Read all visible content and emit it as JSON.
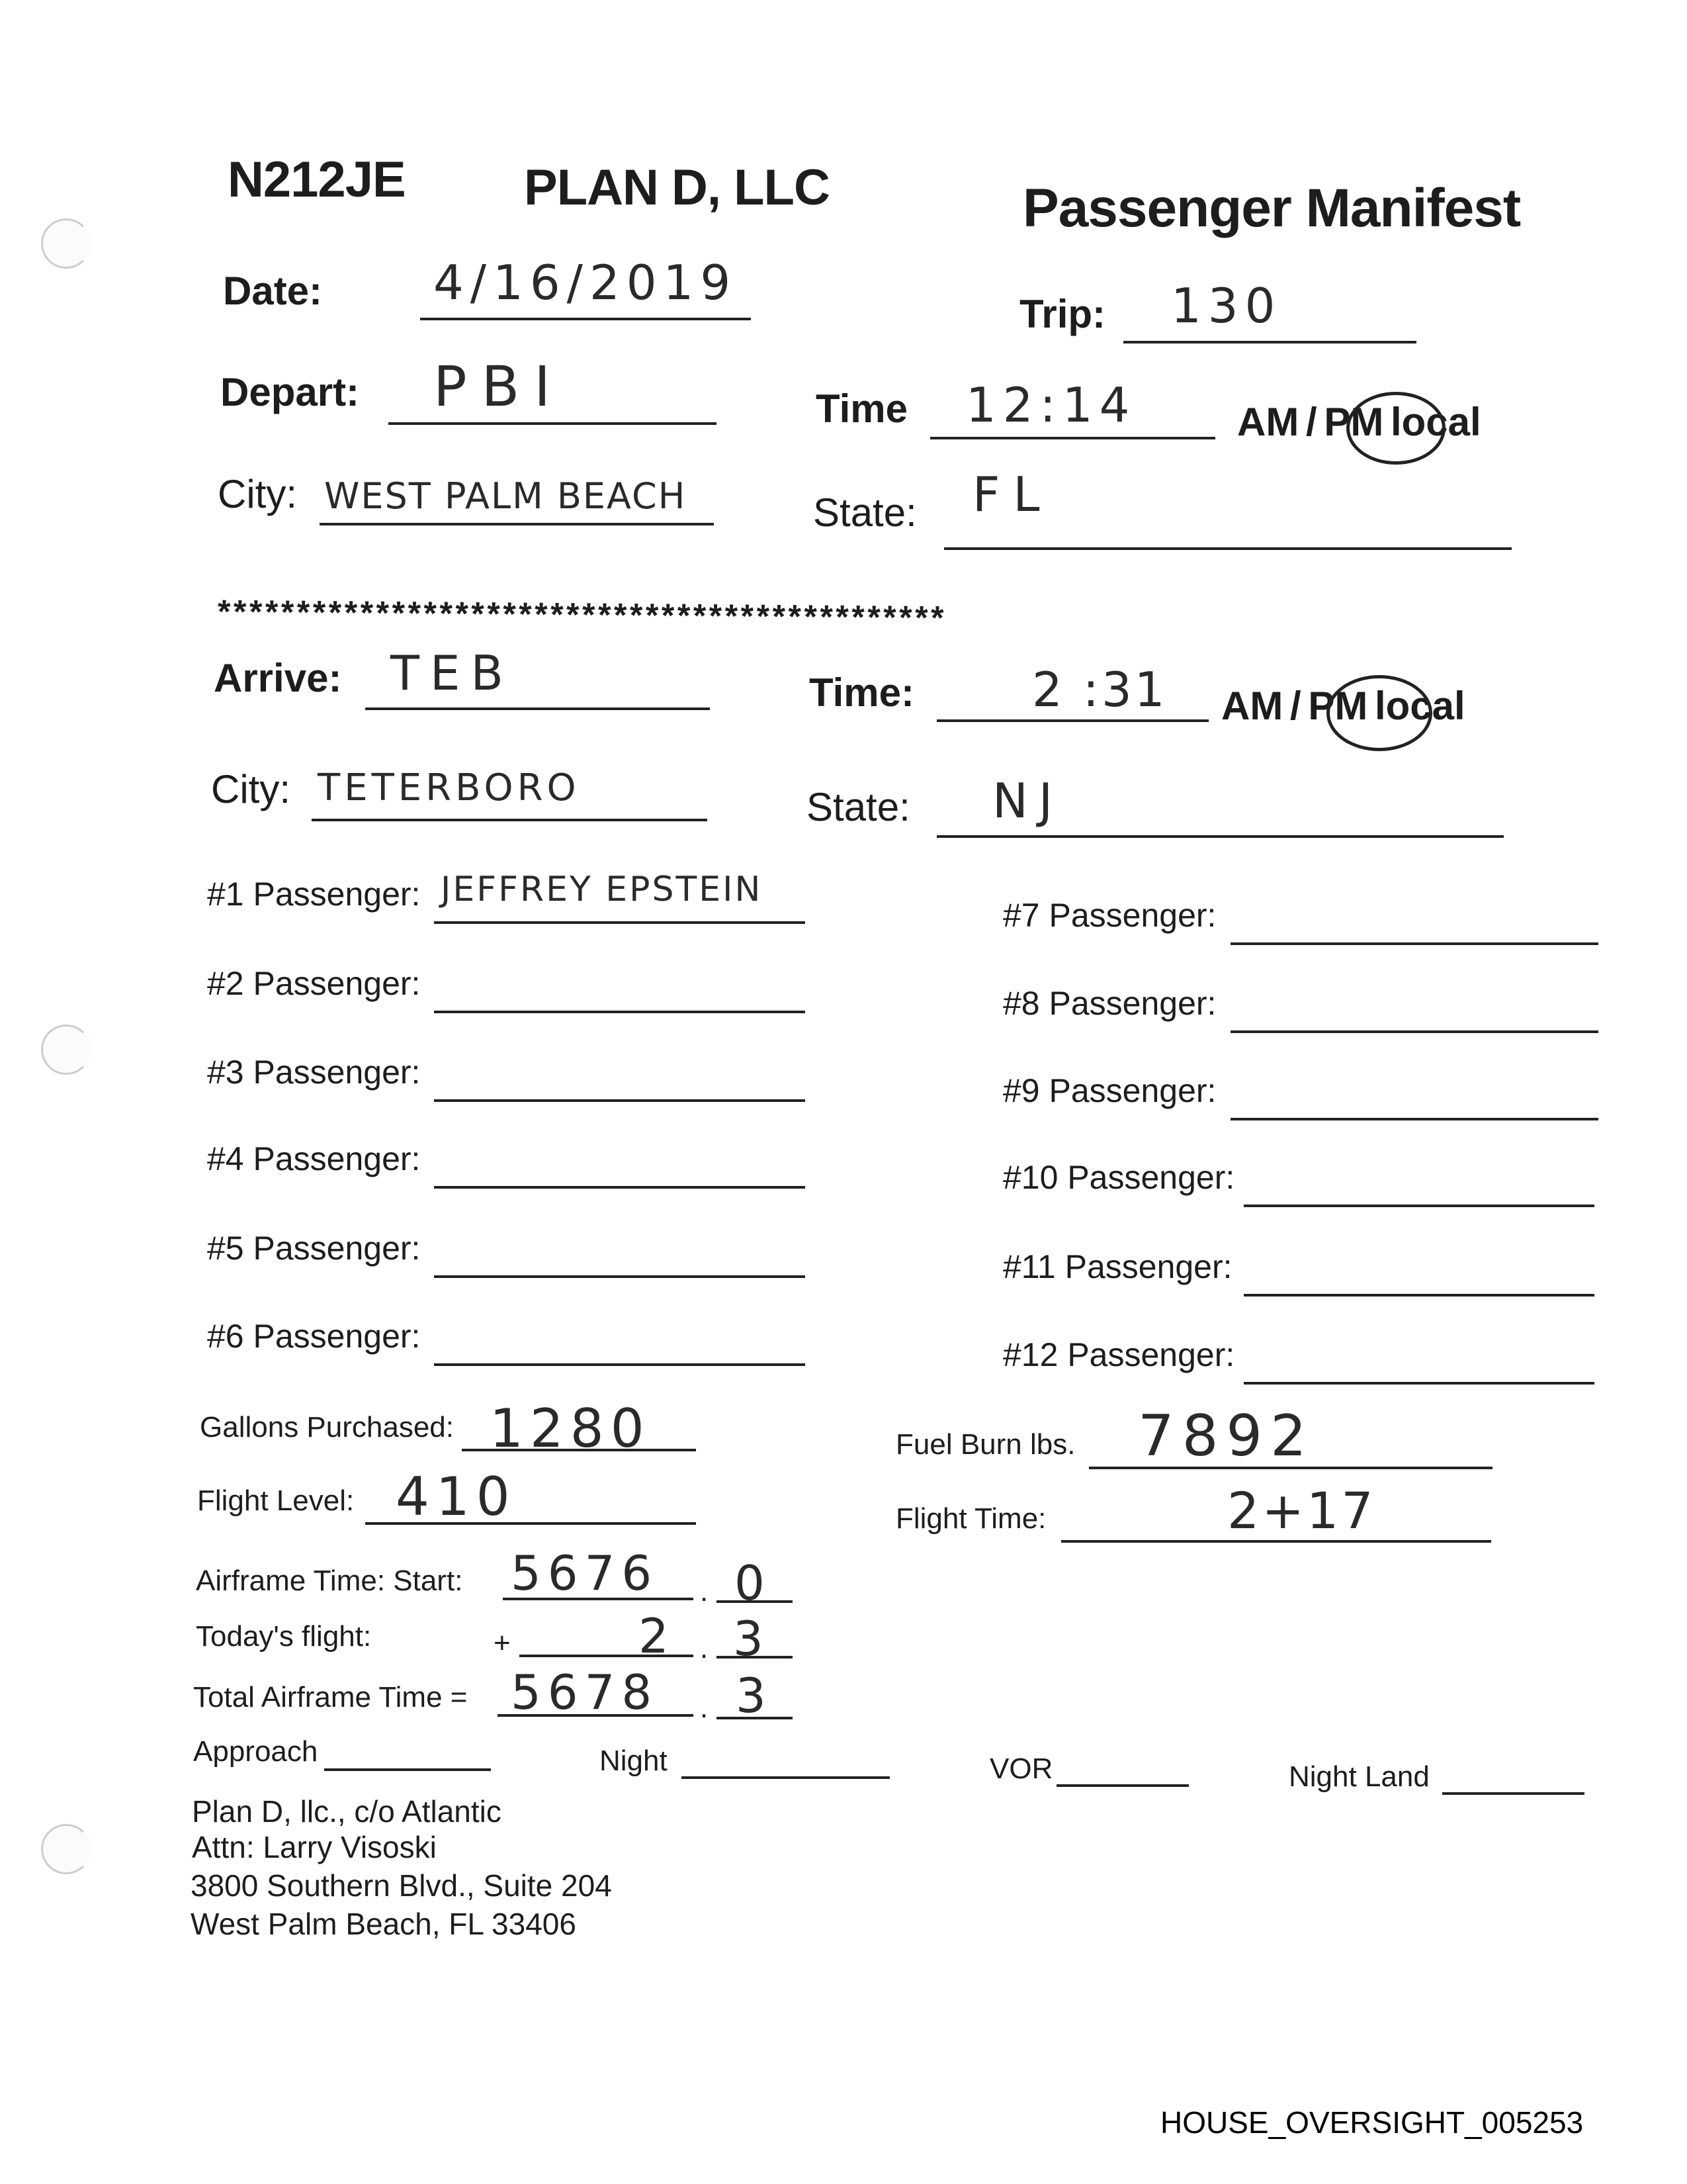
{
  "header": {
    "tail_number": "N212JE",
    "company": "PLAN D, LLC",
    "title": "Passenger Manifest"
  },
  "depart": {
    "date_label": "Date:",
    "date_value": "4/16/2019",
    "trip_label": "Trip:",
    "trip_value": "130",
    "depart_label": "Depart:",
    "depart_value": "PBI",
    "time_label": "Time",
    "time_value": "12:14",
    "ampm": "AM / PM local",
    "ampm_selected": "PM",
    "city_label": "City:",
    "city_value": "WEST PALM BEACH",
    "state_label": "State:",
    "state_value": "FL"
  },
  "separator": "**********************************************",
  "arrive": {
    "arrive_label": "Arrive:",
    "arrive_value": "TEB",
    "time_label": "Time:",
    "time_value": "2 :31",
    "ampm": "AM / PM local",
    "ampm_selected": "PM",
    "city_label": "City:",
    "city_value": "TETERBORO",
    "state_label": "State:",
    "state_value": "NJ"
  },
  "passengers": [
    {
      "label": "#1 Passenger:",
      "value": "JEFFREY EPSTEIN"
    },
    {
      "label": "#2 Passenger:",
      "value": ""
    },
    {
      "label": "#3 Passenger:",
      "value": ""
    },
    {
      "label": "#4 Passenger:",
      "value": ""
    },
    {
      "label": "#5 Passenger:",
      "value": ""
    },
    {
      "label": "#6 Passenger:",
      "value": ""
    },
    {
      "label": "#7 Passenger:",
      "value": ""
    },
    {
      "label": "#8 Passenger:",
      "value": ""
    },
    {
      "label": "#9 Passenger:",
      "value": ""
    },
    {
      "label": "#10 Passenger:",
      "value": ""
    },
    {
      "label": "#11 Passenger:",
      "value": ""
    },
    {
      "label": "#12 Passenger:",
      "value": ""
    }
  ],
  "fuel": {
    "gallons_label": "Gallons Purchased:",
    "gallons_value": "1280",
    "burn_label": "Fuel Burn lbs.",
    "burn_value": "7892",
    "level_label": "Flight Level:",
    "level_value": "410",
    "flight_time_label": "Flight Time:",
    "flight_time_value": "2+17"
  },
  "airframe": {
    "start_label": "Airframe Time: Start:",
    "start_whole": "5676",
    "start_tenth": "0",
    "today_label": "Today's flight:",
    "plus": "+",
    "today_whole": "2",
    "today_tenth": "3",
    "total_label": "Total Airframe Time =",
    "total_whole": "5678",
    "total_tenth": "3",
    "dot": "."
  },
  "extras": {
    "approach": "Approach",
    "night": "Night",
    "vor": "VOR",
    "night_land": "Night Land"
  },
  "address": [
    "Plan D, llc., c/o Atlantic",
    "Attn: Larry Visoski",
    "3800 Southern Blvd., Suite 204",
    "West Palm Beach, FL 33406"
  ],
  "footer": "HOUSE_OVERSIGHT_005253"
}
